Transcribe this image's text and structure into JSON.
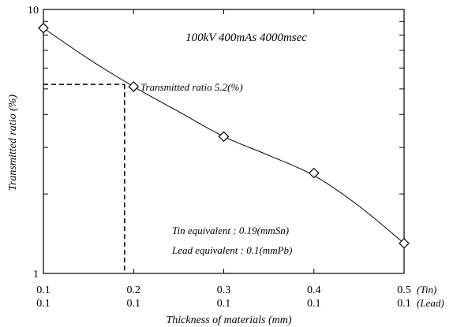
{
  "chart_data": {
    "type": "scatter",
    "title": "100kV 400mAs 4000msec",
    "xlabel": "Thickness of materials (mm)",
    "ylabel": "Transmitted ratio (%)",
    "y_scale": "log",
    "xlim": [
      0.1,
      0.5
    ],
    "ylim": [
      1,
      10
    ],
    "x_tick_labels_tin": [
      "0.1",
      "0.2",
      "0.3",
      "0.4",
      "0.5"
    ],
    "x_tick_labels_lead": [
      "0.1",
      "0.1",
      "0.1",
      "0.1",
      "0.1"
    ],
    "x_row_label_tin": "(Tin)",
    "x_row_label_lead": "(Lead)",
    "y_tick_labels": [
      "10",
      "1"
    ],
    "series": [
      {
        "marker": "diamond",
        "x": [
          0.1,
          0.2,
          0.3,
          0.4,
          0.5
        ],
        "y": [
          8.5,
          5.1,
          3.3,
          2.4,
          1.3
        ]
      }
    ],
    "curve": {
      "x": [
        0.1,
        0.15,
        0.2,
        0.25,
        0.3,
        0.35,
        0.4,
        0.45,
        0.5
      ],
      "y": [
        8.5,
        6.5,
        5.1,
        4.1,
        3.3,
        2.8,
        2.35,
        1.8,
        1.3
      ]
    },
    "reference": {
      "x": 0.19,
      "y": 5.2
    },
    "annotations": {
      "ratio": "Transmitted ratio 5.2(%)",
      "tin": "Tin equivalent : 0.19(mmSn)",
      "lead": "Lead equivalent : 0.1(mmPb)"
    },
    "grid": false
  }
}
